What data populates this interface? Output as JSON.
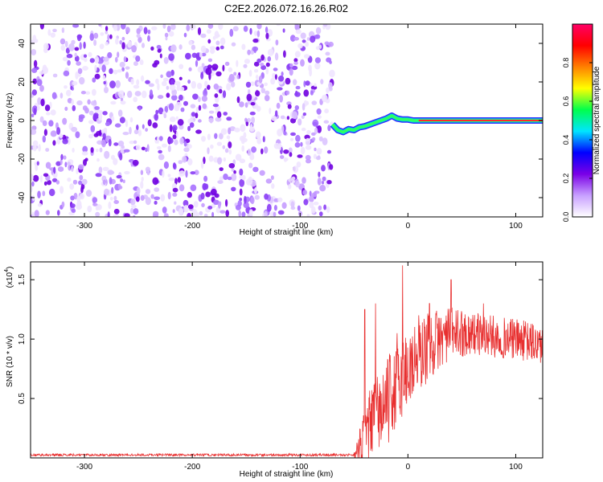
{
  "title": "C2E2.2026.072.16.26.R02",
  "chart_data": [
    {
      "type": "heatmap",
      "xlabel": "Height of straight line (km)",
      "ylabel": "Frequency (Hz)",
      "xlim": [
        -350,
        125
      ],
      "ylim": [
        -50,
        50
      ],
      "xticks": [
        -300,
        -200,
        -100,
        0,
        100
      ],
      "yticks": [
        -40,
        -20,
        0,
        20,
        40
      ],
      "colorbar": {
        "label": "Normalized spectral amplitude",
        "range": [
          0,
          1
        ],
        "ticks": [
          "0.0",
          "0.2",
          "0.4",
          "0.6",
          "0.8"
        ],
        "colors": [
          "#ffffff",
          "#c8a0ff",
          "#7a00e6",
          "#0000ff",
          "#00e5ff",
          "#00ff4c",
          "#ffff00",
          "#ff8000",
          "#ff0000",
          "#ff0066"
        ]
      },
      "noise_region_x": [
        -350,
        -70
      ],
      "ridge": {
        "x": [
          -70,
          -65,
          -60,
          -55,
          -50,
          -45,
          -40,
          -35,
          -30,
          -25,
          -20,
          -15,
          -10,
          -5,
          0,
          5,
          10,
          125
        ],
        "freq": [
          -2,
          -5,
          -6,
          -4.5,
          -5,
          -3.5,
          -3,
          -2,
          -1,
          0,
          1,
          2.5,
          1,
          0.5,
          0.5,
          0,
          0,
          0
        ]
      }
    },
    {
      "type": "line",
      "xlabel": "Height of straight line (km)",
      "ylabel": "SNR (10 * v/v)",
      "yscale_label": "(x10",
      "yscale_exponent": "4",
      "xlim": [
        -350,
        125
      ],
      "ylim": [
        0,
        1.65
      ],
      "xticks": [
        -300,
        -200,
        -100,
        0,
        100
      ],
      "yticks": [
        "0.5",
        "1.0",
        "1.5"
      ],
      "color": "#e83030",
      "envelope": {
        "x": [
          -350,
          -50,
          -45,
          -40,
          -35,
          -30,
          -20,
          -15,
          -10,
          -5,
          0,
          10,
          20,
          30,
          40,
          50,
          60,
          80,
          100,
          125
        ],
        "base": [
          0.02,
          0.02,
          0.05,
          0.2,
          0.28,
          0.35,
          0.45,
          0.55,
          0.6,
          0.7,
          0.75,
          0.85,
          0.95,
          1.0,
          1.05,
          1.05,
          1.05,
          1.02,
          1.0,
          0.95
        ],
        "amp": [
          0.01,
          0.02,
          0.18,
          0.25,
          0.3,
          0.33,
          0.36,
          0.38,
          0.38,
          0.38,
          0.35,
          0.32,
          0.3,
          0.25,
          0.22,
          0.2,
          0.18,
          0.18,
          0.17,
          0.18
        ]
      },
      "spikes": [
        {
          "x": -40,
          "y": 1.25
        },
        {
          "x": -30,
          "y": 1.3
        },
        {
          "x": -10,
          "y": 1.05
        },
        {
          "x": -5,
          "y": 1.62
        },
        {
          "x": 10,
          "y": 1.2
        },
        {
          "x": 20,
          "y": 1.3
        },
        {
          "x": 40,
          "y": 1.5
        },
        {
          "x": 70,
          "y": 1.3
        }
      ]
    }
  ]
}
